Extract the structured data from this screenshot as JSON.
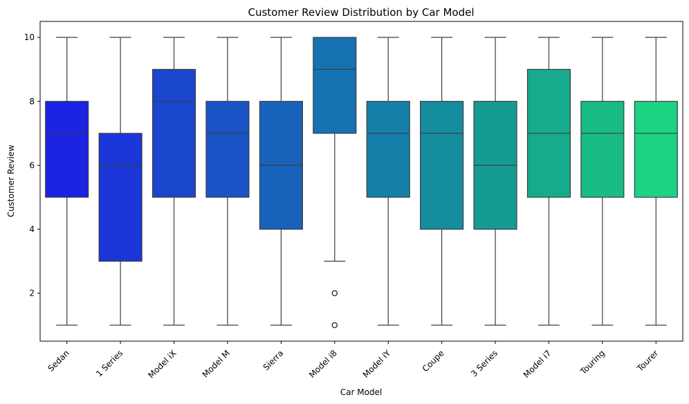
{
  "chart_data": {
    "type": "box",
    "title": "Customer Review Distribution by Car Model",
    "xlabel": "Car Model",
    "ylabel": "Customer Review",
    "ylim": [
      0.5,
      10.5
    ],
    "yticks": [
      2,
      4,
      6,
      8,
      10
    ],
    "grid": false,
    "legend": "none",
    "categories": [
      "Sedan",
      "1 Series",
      "Model iX",
      "Model M",
      "Sierra",
      "Model i8",
      "Model iY",
      "Coupe",
      "3 Series",
      "Model i7",
      "Touring",
      "Tourer"
    ],
    "boxes": [
      {
        "min": 1,
        "q1": 5,
        "median": 7,
        "q3": 8,
        "max": 10,
        "outliers": [],
        "color": "#1a23e2"
      },
      {
        "min": 1,
        "q1": 3,
        "median": 6,
        "q3": 7,
        "max": 10,
        "outliers": [],
        "color": "#1a36d8"
      },
      {
        "min": 1,
        "q1": 5,
        "median": 8,
        "q3": 9,
        "max": 10,
        "outliers": [],
        "color": "#1a46cd"
      },
      {
        "min": 1,
        "q1": 5,
        "median": 7,
        "q3": 8,
        "max": 10,
        "outliers": [],
        "color": "#1a53c6"
      },
      {
        "min": 1,
        "q1": 4,
        "median": 6,
        "q3": 8,
        "max": 10,
        "outliers": [],
        "color": "#1862bc"
      },
      {
        "min": 3,
        "q1": 7,
        "median": 9,
        "q3": 10,
        "max": 10,
        "outliers": [
          1,
          2
        ],
        "color": "#1672b2"
      },
      {
        "min": 1,
        "q1": 5,
        "median": 7,
        "q3": 8,
        "max": 10,
        "outliers": [],
        "color": "#1480aa"
      },
      {
        "min": 1,
        "q1": 4,
        "median": 7,
        "q3": 8,
        "max": 10,
        "outliers": [],
        "color": "#148d9e"
      },
      {
        "min": 1,
        "q1": 4,
        "median": 6,
        "q3": 8,
        "max": 10,
        "outliers": [],
        "color": "#149b94"
      },
      {
        "min": 1,
        "q1": 5,
        "median": 7,
        "q3": 9,
        "max": 10,
        "outliers": [],
        "color": "#17aa8b"
      },
      {
        "min": 1,
        "q1": 5,
        "median": 7,
        "q3": 8,
        "max": 10,
        "outliers": [],
        "color": "#19bc83"
      },
      {
        "min": 1,
        "q1": 5,
        "median": 7,
        "q3": 8,
        "max": 10,
        "outliers": [],
        "color": "#1cd283"
      }
    ]
  }
}
